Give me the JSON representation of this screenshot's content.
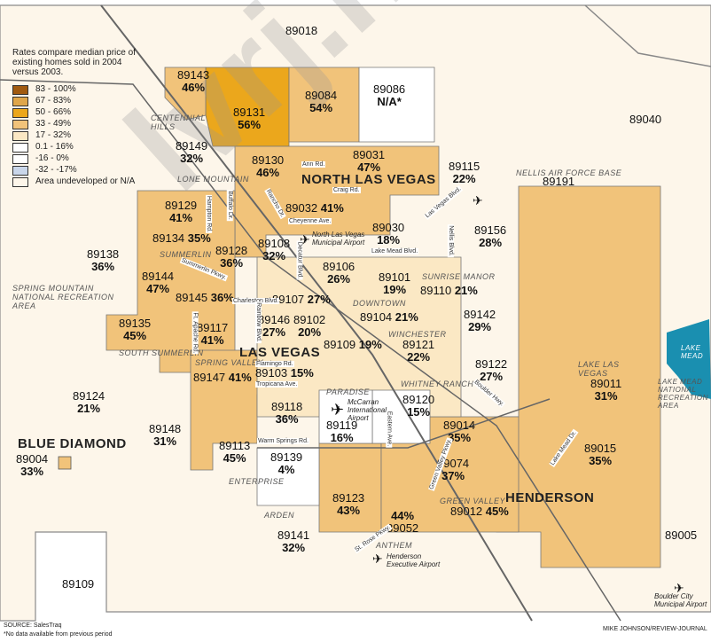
{
  "legend": {
    "title": "Rates compare median price of existing homes sold in 2004 versus 2003.",
    "items": [
      {
        "label": "83 - 100%",
        "color": "#a05a10"
      },
      {
        "label": "67 - 83%",
        "color": "#dfa64a"
      },
      {
        "label": "50 - 66%",
        "color": "#eba71c"
      },
      {
        "label": "33 - 49%",
        "color": "#f1c37a"
      },
      {
        "label": "17 - 32%",
        "color": "#fbe8c4"
      },
      {
        "label": "0.1 - 16%",
        "color": "#ffffff"
      },
      {
        "label": "-16 - 0%",
        "color": "#ffffff"
      },
      {
        "label": "-32 - -17%",
        "color": "#c9d6ea"
      },
      {
        "label": "Area undeveloped or N/A",
        "color": "#fdf6ea"
      }
    ]
  },
  "zips": [
    {
      "zip": "89018",
      "pct": ""
    },
    {
      "zip": "89143",
      "pct": "46%"
    },
    {
      "zip": "89131",
      "pct": "56%"
    },
    {
      "zip": "89084",
      "pct": "54%"
    },
    {
      "zip": "89086",
      "pct": "N/A*"
    },
    {
      "zip": "89040",
      "pct": ""
    },
    {
      "zip": "89149",
      "pct": "32%"
    },
    {
      "zip": "89130",
      "pct": "46%"
    },
    {
      "zip": "89031",
      "pct": "47%"
    },
    {
      "zip": "89115",
      "pct": "22%"
    },
    {
      "zip": "89191",
      "pct": ""
    },
    {
      "zip": "89129",
      "pct": "41%"
    },
    {
      "zip": "89032",
      "pct": "41%"
    },
    {
      "zip": "89134",
      "pct": "35%"
    },
    {
      "zip": "89030",
      "pct": "18%"
    },
    {
      "zip": "89156",
      "pct": "28%"
    },
    {
      "zip": "89138",
      "pct": "36%"
    },
    {
      "zip": "89128",
      "pct": "36%"
    },
    {
      "zip": "89108",
      "pct": "32%"
    },
    {
      "zip": "89106",
      "pct": "26%"
    },
    {
      "zip": "89144",
      "pct": "47%"
    },
    {
      "zip": "89145",
      "pct": "36%"
    },
    {
      "zip": "89107",
      "pct": "27%"
    },
    {
      "zip": "89101",
      "pct": "19%"
    },
    {
      "zip": "89110",
      "pct": "21%"
    },
    {
      "zip": "89146",
      "pct": "27%"
    },
    {
      "zip": "89102",
      "pct": "20%"
    },
    {
      "zip": "89104",
      "pct": "21%"
    },
    {
      "zip": "89142",
      "pct": "29%"
    },
    {
      "zip": "89135",
      "pct": "45%"
    },
    {
      "zip": "89117",
      "pct": "41%"
    },
    {
      "zip": "89109",
      "pct": "19%"
    },
    {
      "zip": "89121",
      "pct": "22%"
    },
    {
      "zip": "89122",
      "pct": "27%"
    },
    {
      "zip": "89147",
      "pct": "41%"
    },
    {
      "zip": "89103",
      "pct": "15%"
    },
    {
      "zip": "89011",
      "pct": "31%"
    },
    {
      "zip": "89124",
      "pct": "21%"
    },
    {
      "zip": "89118",
      "pct": "36%"
    },
    {
      "zip": "89120",
      "pct": "15%"
    },
    {
      "zip": "89148",
      "pct": "31%"
    },
    {
      "zip": "89119",
      "pct": "16%"
    },
    {
      "zip": "89014",
      "pct": "35%"
    },
    {
      "zip": "89015",
      "pct": "35%"
    },
    {
      "zip": "89113",
      "pct": "45%"
    },
    {
      "zip": "89139",
      "pct": "4%"
    },
    {
      "zip": "89004",
      "pct": "33%"
    },
    {
      "zip": "89074",
      "pct": "37%"
    },
    {
      "zip": "89123",
      "pct": "43%"
    },
    {
      "zip": "89052",
      "pct": "44%"
    },
    {
      "zip": "89012",
      "pct": "45%"
    },
    {
      "zip": "89141",
      "pct": "32%"
    },
    {
      "zip": "89005",
      "pct": ""
    },
    {
      "zip": "89109",
      "pct": ""
    }
  ],
  "cities": [
    "NORTH LAS VEGAS",
    "LAS VEGAS",
    "HENDERSON",
    "BLUE DIAMOND"
  ],
  "areas": [
    "CENTENNIAL HILLS",
    "LONE MOUNTAIN",
    "SUMMERLIN",
    "SPRING MOUNTAIN NATIONAL RECREATION AREA",
    "SOUTH SUMMERLIN",
    "SPRING VALLEY",
    "SUNRISE MANOR",
    "DOWNTOWN",
    "WINCHESTER",
    "WHITNEY RANCH",
    "PARADISE",
    "ENTERPRISE",
    "ARDEN",
    "ANTHEM",
    "GREEN VALLEY",
    "NELLIS AIR FORCE BASE",
    "LAKE LAS VEGAS",
    "LAKE MEAD NATIONAL RECREATION AREA",
    "LAKE MEAD"
  ],
  "streets": [
    "Ann Rd.",
    "Craig Rd.",
    "Cheyenne Ave.",
    "Lake Mead Blvd.",
    "Charleston Blvd.",
    "Flamingo Rd.",
    "Tropicana Ave.",
    "Warm Springs Rd.",
    "St. Rose Pkwy.",
    "Boulder Hwy.",
    "Lake Mead Dr.",
    "Summerlin Pkwy.",
    "Las Vegas Blvd.",
    "Rancho Dr.",
    "Eastern Ave.",
    "Green Valley Pkwy.",
    "Nellis Blvd.",
    "Buffalo Dr.",
    "Rainbow Blvd.",
    "Decatur Blvd.",
    "Hampton Rd.",
    "Ft. Apache Rd."
  ],
  "airports": [
    {
      "name": "North Las Vegas Municipal Airport"
    },
    {
      "name": "McCarran International Airport"
    },
    {
      "name": "Henderson Executive Airport"
    },
    {
      "name": "Boulder City Municipal Airport"
    }
  ],
  "highways": [
    "95",
    "15",
    "215",
    "147",
    "93",
    "160"
  ],
  "source": "SOURCE: SalesTraq",
  "footnote": "*No data available from previous period",
  "credit": "MIKE JOHNSON/REVIEW-JOURNAL",
  "watermark": "lvrj.net"
}
